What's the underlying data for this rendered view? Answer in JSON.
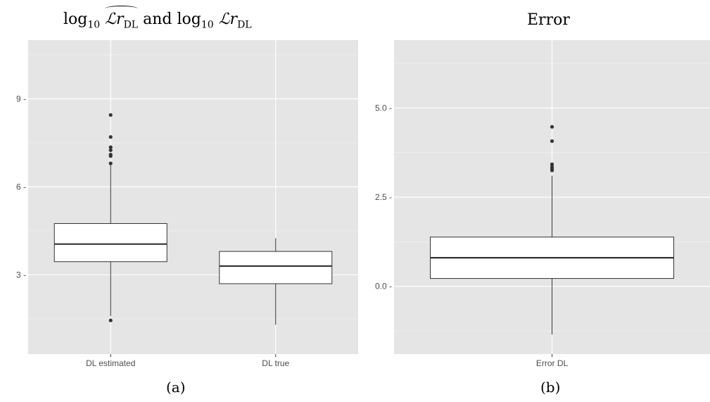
{
  "chart_data": [
    {
      "type": "boxplot",
      "title": "log10 ℒr̂DL and log10 ℒrDL",
      "title_parts": {
        "log": "log",
        "base": "10",
        "symbol": "ℒr",
        "sub": "DL",
        "conj": "and"
      },
      "panel_label": "(a)",
      "categories": [
        "DL estimated",
        "DL true"
      ],
      "ylim": [
        0.3,
        11.0
      ],
      "yticks": [
        3,
        6,
        9
      ],
      "ytick_labels": [
        "3 -",
        "6 -",
        "9 -"
      ],
      "grid": true,
      "boxes": [
        {
          "category": "DL estimated",
          "whisker_low": 1.6,
          "q1": 3.45,
          "median": 4.05,
          "q3": 4.75,
          "whisker_high": 6.8,
          "outliers": [
            1.45,
            6.8,
            7.05,
            7.1,
            7.25,
            7.35,
            7.7,
            8.45
          ]
        },
        {
          "category": "DL true",
          "whisker_low": 1.3,
          "q1": 2.7,
          "median": 3.3,
          "q3": 3.8,
          "whisker_high": 4.25,
          "outliers": []
        }
      ]
    },
    {
      "type": "boxplot",
      "title": "Error",
      "panel_label": "(b)",
      "categories": [
        "Error DL"
      ],
      "ylim": [
        -1.9,
        6.9
      ],
      "yticks": [
        0.0,
        2.5,
        5.0
      ],
      "ytick_labels": [
        "0.0 -",
        "2.5 -",
        "5.0 -"
      ],
      "grid": true,
      "boxes": [
        {
          "category": "Error DL",
          "whisker_low": -1.35,
          "q1": 0.22,
          "median": 0.8,
          "q3": 1.38,
          "whisker_high": 3.1,
          "outliers": [
            3.25,
            3.3,
            3.35,
            3.42,
            4.07,
            4.47
          ]
        }
      ]
    }
  ],
  "colors": {
    "panel_bg": "#e5e5e5",
    "grid_major": "#ffffff",
    "grid_minor": "#f2f2f2",
    "box_fill": "#ffffff",
    "box_stroke": "#333333",
    "tick_text": "#4d4d4d"
  }
}
